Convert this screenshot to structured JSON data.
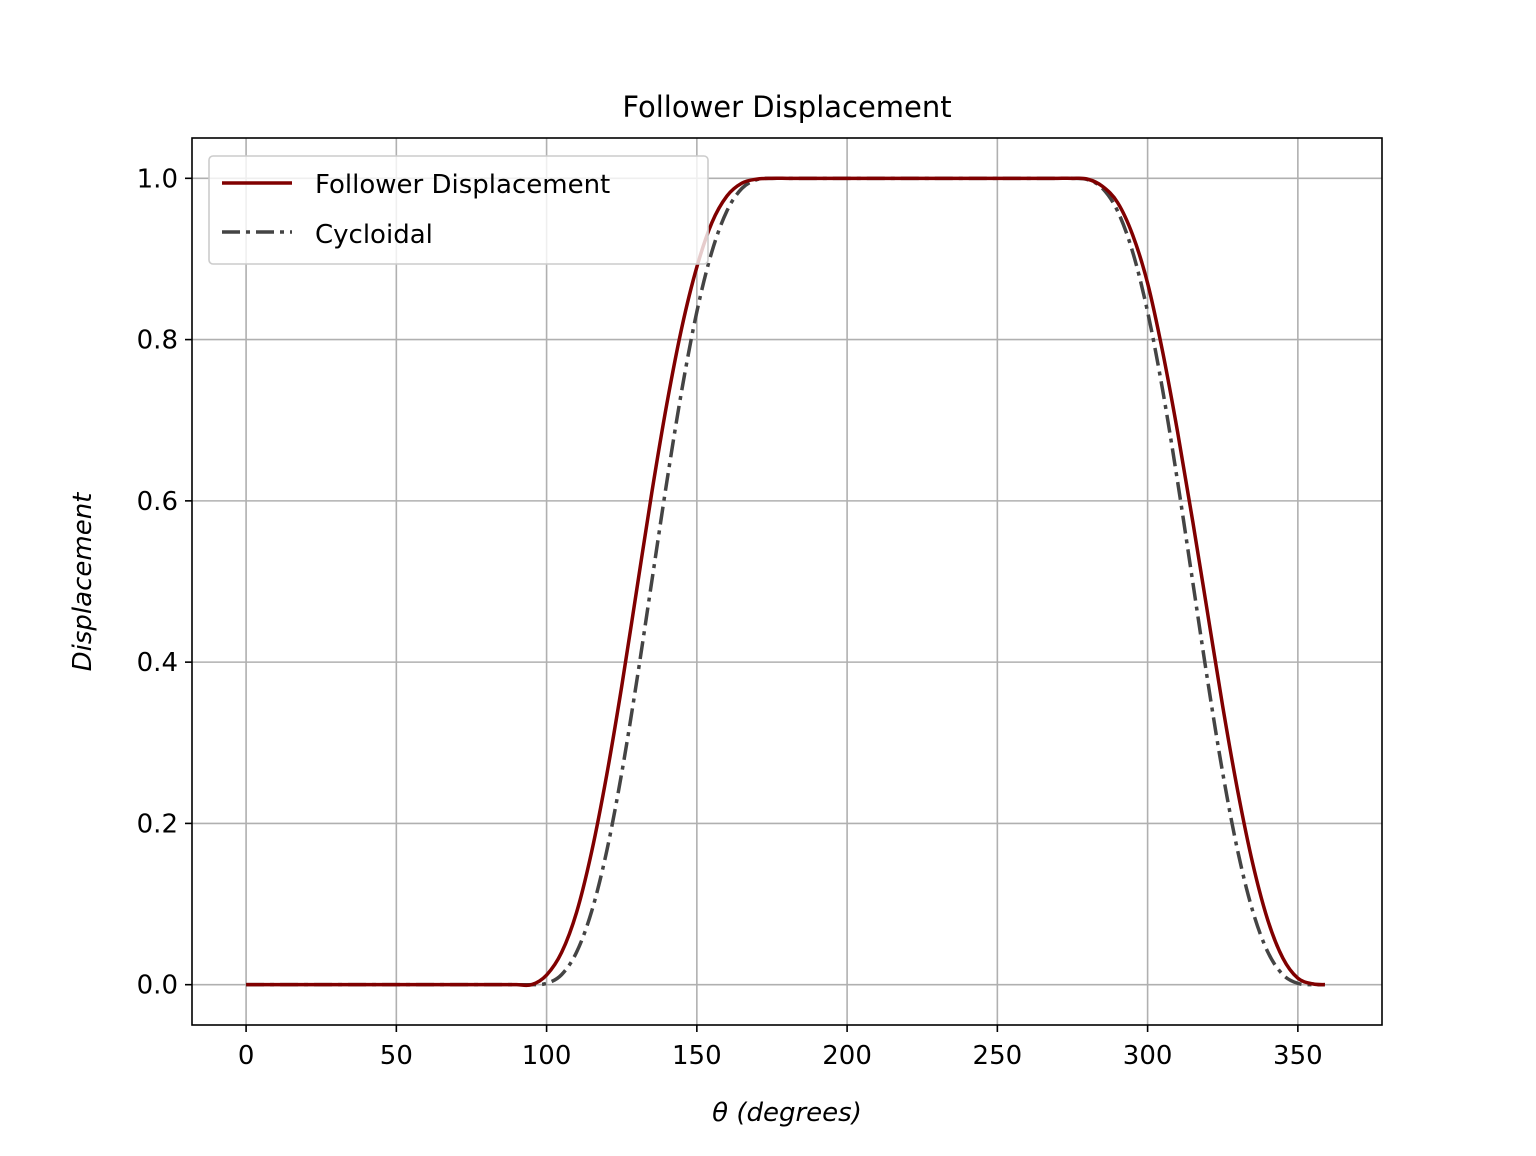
{
  "chart_data": {
    "type": "line",
    "title": "Follower Displacement",
    "xlabel": "θ (degrees)",
    "ylabel": "Displacement",
    "xlim": [
      -18,
      378
    ],
    "ylim": [
      -0.05,
      1.05
    ],
    "xticks": [
      0,
      50,
      100,
      150,
      200,
      250,
      300,
      350
    ],
    "yticks": [
      0.0,
      0.2,
      0.4,
      0.6,
      0.8,
      1.0
    ],
    "xtick_labels": [
      "0",
      "50",
      "100",
      "150",
      "200",
      "250",
      "300",
      "350"
    ],
    "ytick_labels": [
      "0.0",
      "0.2",
      "0.4",
      "0.6",
      "0.8",
      "1.0"
    ],
    "grid": true,
    "legend_position": "upper-left",
    "x": [
      0,
      5,
      10,
      15,
      20,
      25,
      30,
      35,
      40,
      45,
      50,
      55,
      60,
      65,
      70,
      75,
      80,
      85,
      90,
      95,
      100,
      105,
      110,
      115,
      120,
      125,
      130,
      135,
      140,
      145,
      150,
      155,
      160,
      165,
      170,
      175,
      180,
      185,
      190,
      195,
      200,
      205,
      210,
      215,
      220,
      225,
      230,
      235,
      240,
      245,
      250,
      255,
      260,
      265,
      270,
      275,
      280,
      285,
      290,
      295,
      300,
      305,
      310,
      315,
      320,
      325,
      330,
      335,
      340,
      345,
      350,
      355,
      359
    ],
    "series": [
      {
        "name": "Follower Displacement",
        "color": "#800000",
        "style": "solid",
        "values": [
          0,
          0,
          0,
          0,
          0,
          0,
          0,
          0,
          0,
          0,
          0,
          0,
          0,
          0,
          0,
          0,
          0,
          0,
          0,
          0,
          0.012,
          0.04,
          0.09,
          0.165,
          0.26,
          0.37,
          0.49,
          0.61,
          0.72,
          0.815,
          0.89,
          0.945,
          0.978,
          0.994,
          0.999,
          1,
          1,
          1,
          1,
          1,
          1,
          1,
          1,
          1,
          1,
          1,
          1,
          1,
          1,
          1,
          1,
          1,
          1,
          1,
          1,
          1,
          0.999,
          0.99,
          0.97,
          0.93,
          0.87,
          0.785,
          0.685,
          0.575,
          0.46,
          0.345,
          0.24,
          0.15,
          0.08,
          0.033,
          0.008,
          0.001,
          0
        ]
      },
      {
        "name": "Cycloidal",
        "color": "#444444",
        "style": "dashdot",
        "values": [
          0,
          0,
          0,
          0,
          0,
          0,
          0,
          0,
          0,
          0,
          0,
          0,
          0,
          0,
          0,
          0,
          0,
          0,
          0,
          0,
          0.0016,
          0.0125,
          0.0405,
          0.091,
          0.1655,
          0.2625,
          0.3766,
          0.5,
          0.6234,
          0.7375,
          0.8345,
          0.909,
          0.9595,
          0.9875,
          0.9984,
          1,
          1,
          1,
          1,
          1,
          1,
          1,
          1,
          1,
          1,
          1,
          1,
          1,
          1,
          1,
          1,
          1,
          1,
          1,
          1,
          1,
          0.9984,
          0.9875,
          0.9595,
          0.909,
          0.8345,
          0.7375,
          0.6234,
          0.5,
          0.3766,
          0.2625,
          0.1655,
          0.091,
          0.0405,
          0.0125,
          0.0016,
          0,
          0
        ]
      }
    ]
  }
}
